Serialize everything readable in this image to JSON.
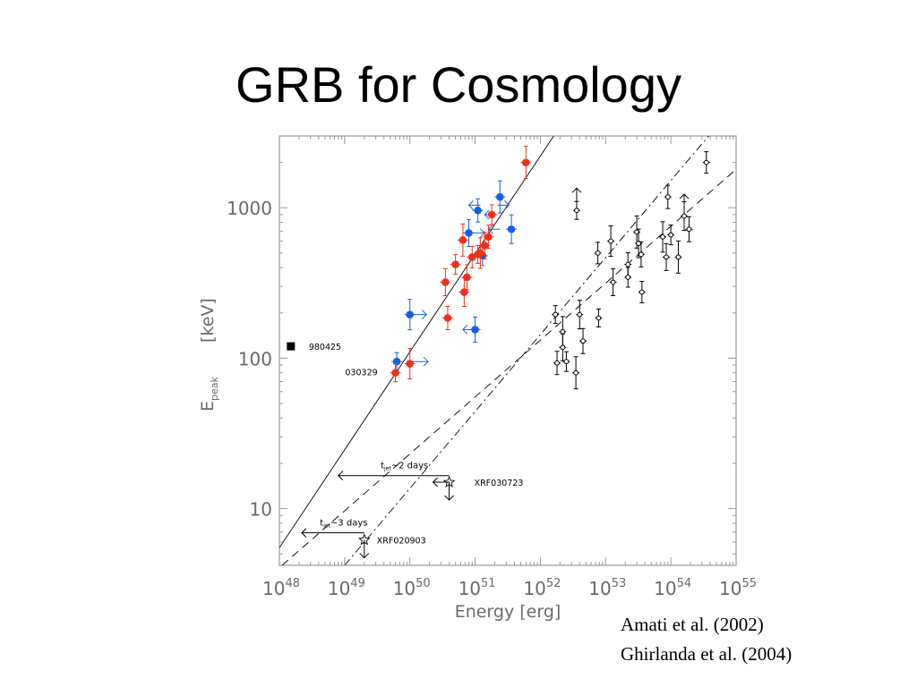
{
  "slide": {
    "title": "GRB for Cosmology",
    "citations": [
      "Amati et al. (2002)",
      "Ghirlanda et al. (2004)"
    ]
  },
  "colors": {
    "blue": "#1a5fe0",
    "red": "#e8321e",
    "black": "#000000",
    "frame": "#9a9a9a"
  },
  "chart_data": {
    "type": "scatter",
    "x_scale": "log",
    "y_scale": "log",
    "xlim": [
      1e+48,
      1e+55
    ],
    "ylim": [
      4.2,
      3000
    ],
    "xlabel": "Energy   [erg]",
    "ylabel": "E",
    "ylabel_sub": "peak",
    "ylabel_unit": "[keV]",
    "x_ticks": [
      {
        "value": 1e+48,
        "base": "10",
        "exp": "48"
      },
      {
        "value": 1e+49,
        "base": "10",
        "exp": "49"
      },
      {
        "value": 1e+50,
        "base": "10",
        "exp": "50"
      },
      {
        "value": 1e+51,
        "base": "10",
        "exp": "51"
      },
      {
        "value": 1e+52,
        "base": "10",
        "exp": "52"
      },
      {
        "value": 1e+53,
        "base": "10",
        "exp": "53"
      },
      {
        "value": 1e+54,
        "base": "10",
        "exp": "54"
      },
      {
        "value": 1e+55,
        "base": "10",
        "exp": "55"
      }
    ],
    "y_ticks": [
      {
        "value": 10,
        "label": "10"
      },
      {
        "value": 100,
        "label": "100"
      },
      {
        "value": 1000,
        "label": "1000"
      }
    ],
    "series": [
      {
        "color": "blue",
        "marker": "filled-circle",
        "points": [
          {
            "x": 6.3e+49,
            "y": 95
          },
          {
            "x": 1e+50,
            "y": 195
          },
          {
            "x": 8e+50,
            "y": 680
          },
          {
            "x": 1.1e+51,
            "y": 960
          },
          {
            "x": 1.3e+51,
            "y": 480
          },
          {
            "x": 2.4e+51,
            "y": 1180
          },
          {
            "x": 3.6e+51,
            "y": 720
          },
          {
            "x": 1e+51,
            "y": 155
          }
        ]
      },
      {
        "color": "red",
        "marker": "filled-circle",
        "points": [
          {
            "x": 6e+49,
            "y": 80
          },
          {
            "x": 1e+50,
            "y": 92
          },
          {
            "x": 3.5e+50,
            "y": 320
          },
          {
            "x": 3.8e+50,
            "y": 185
          },
          {
            "x": 5e+50,
            "y": 420
          },
          {
            "x": 6.5e+50,
            "y": 610
          },
          {
            "x": 6.8e+50,
            "y": 275
          },
          {
            "x": 7.5e+50,
            "y": 345
          },
          {
            "x": 9e+50,
            "y": 470
          },
          {
            "x": 1.1e+51,
            "y": 490
          },
          {
            "x": 1.2e+51,
            "y": 500
          },
          {
            "x": 1.4e+51,
            "y": 560
          },
          {
            "x": 1.6e+51,
            "y": 640
          },
          {
            "x": 1.8e+51,
            "y": 900
          },
          {
            "x": 6e+51,
            "y": 2000
          }
        ]
      },
      {
        "color": "black",
        "marker": "open-circle",
        "points": [
          {
            "x": 1.7e+52,
            "y": 195
          },
          {
            "x": 2.2e+52,
            "y": 150
          },
          {
            "x": 2.2e+52,
            "y": 118
          },
          {
            "x": 1.8e+52,
            "y": 93
          },
          {
            "x": 2.5e+52,
            "y": 95
          },
          {
            "x": 3.5e+52,
            "y": 80
          },
          {
            "x": 4e+52,
            "y": 195
          },
          {
            "x": 4.5e+52,
            "y": 130
          },
          {
            "x": 7.6e+52,
            "y": 500
          },
          {
            "x": 7.8e+52,
            "y": 185
          },
          {
            "x": 1.2e+53,
            "y": 600
          },
          {
            "x": 1.3e+53,
            "y": 320
          },
          {
            "x": 2.2e+53,
            "y": 420
          },
          {
            "x": 2.2e+53,
            "y": 345
          },
          {
            "x": 3e+53,
            "y": 690
          },
          {
            "x": 3.2e+53,
            "y": 580
          },
          {
            "x": 3.5e+53,
            "y": 490
          },
          {
            "x": 3.6e+53,
            "y": 275
          },
          {
            "x": 3.6e+52,
            "y": 960
          },
          {
            "x": 7.5e+53,
            "y": 640
          },
          {
            "x": 8.5e+53,
            "y": 470
          },
          {
            "x": 9e+53,
            "y": 1180
          },
          {
            "x": 1e+54,
            "y": 660
          },
          {
            "x": 1.3e+54,
            "y": 470
          },
          {
            "x": 1.6e+54,
            "y": 880
          },
          {
            "x": 1.9e+54,
            "y": 720
          },
          {
            "x": 3.5e+54,
            "y": 2000
          }
        ]
      }
    ],
    "lines": [
      {
        "style": "solid",
        "from": [
          1e+48,
          5.5
        ],
        "to": [
          1.6e+52,
          3000
        ]
      },
      {
        "style": "dashed",
        "from": [
          1.1e+48,
          4.2
        ],
        "to": [
          1e+55,
          1800
        ]
      },
      {
        "style": "dash-dot",
        "from": [
          1e+49,
          4.2
        ],
        "to": [
          3.8e+54,
          3000
        ]
      }
    ],
    "upper_limit_arrows": [
      {
        "color": "blue",
        "x": 1.2e+51,
        "y": 1040,
        "dir": "left",
        "to_x": 8e+50
      },
      {
        "color": "blue",
        "x": 2.2e+51,
        "y": 1040,
        "dir": "right",
        "to_x": 3.3e+51
      },
      {
        "color": "blue",
        "x": 2.2e+51,
        "y": 900,
        "dir": "left",
        "to_x": 1.4e+51
      },
      {
        "color": "blue",
        "x": 2.4e+51,
        "y": 720,
        "dir": "left",
        "to_x": 1.6e+51
      },
      {
        "color": "blue",
        "x": 8e+50,
        "y": 680,
        "dir": "right",
        "to_x": 1.4e+51
      },
      {
        "color": "blue",
        "x": 1e+51,
        "y": 155,
        "dir": "left",
        "to_x": 6.5e+50
      },
      {
        "color": "blue",
        "x": 1e+50,
        "y": 195,
        "dir": "right",
        "to_x": 1.8e+50
      },
      {
        "color": "blue",
        "x": 1.1e+50,
        "y": 95,
        "dir": "right",
        "to_x": 1.9e+50
      },
      {
        "color": "black",
        "x": 3.6e+52,
        "y": 1100,
        "dir": "up",
        "to_y": 1350
      },
      {
        "color": "black",
        "x": 1.6e+54,
        "y": 1000,
        "dir": "up",
        "to_y": 1230
      }
    ],
    "xrf_points": [
      {
        "x": 4e+50,
        "y": 15,
        "label": "XRF030723"
      },
      {
        "x": 2e+49,
        "y": 6.2,
        "label": "XRF020903"
      }
    ],
    "annotations": [
      {
        "kind": "lower_limit",
        "label_main": "t",
        "label_sub": "jet",
        "label_rest": "~2 days",
        "y": 18,
        "x_from": 8e+48,
        "x_to": 4e+50
      },
      {
        "kind": "lower_limit",
        "label_main": "t",
        "label_sub": "jet",
        "label_rest": "~3 days",
        "y": 7.5,
        "x_from": 2.2e+48,
        "x_to": 2e+49
      }
    ],
    "grb980425": {
      "x": 1.5e+48,
      "y": 120,
      "label": "980425"
    },
    "grb030329_label": {
      "x": 3.2e+49,
      "y": 80,
      "label": "030329"
    }
  }
}
